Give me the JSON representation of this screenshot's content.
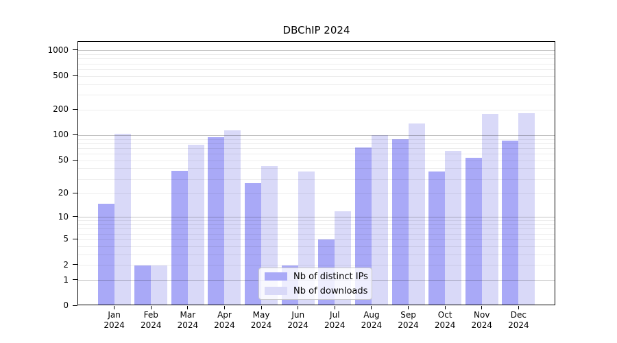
{
  "chart_data": {
    "type": "bar",
    "title": "DBChIP 2024",
    "x": {
      "months": [
        "Jan",
        "Feb",
        "Mar",
        "Apr",
        "May",
        "Jun",
        "Jul",
        "Aug",
        "Sep",
        "Oct",
        "Nov",
        "Dec"
      ],
      "year": "2024"
    },
    "series": [
      {
        "name": "Nb of distinct IPs",
        "color": "#a9a9f7",
        "values": [
          15,
          2,
          38,
          95,
          27,
          2,
          5,
          72,
          90,
          37,
          54,
          87
        ]
      },
      {
        "name": "Nb of downloads",
        "color": "#d9d9f8",
        "values": [
          105,
          2,
          77,
          115,
          43,
          37,
          12,
          100,
          138,
          66,
          180,
          182
        ]
      }
    ],
    "y_axis": {
      "scale": "log1p",
      "tick_values": [
        0,
        1,
        2,
        5,
        10,
        20,
        50,
        100,
        200,
        500,
        1000
      ],
      "tick_labels": [
        "0",
        "1",
        "2",
        "5",
        "10",
        "20",
        "50",
        "100",
        "200",
        "500",
        "1000"
      ],
      "gridlines_strong": [
        1,
        10,
        100,
        1000
      ],
      "gridlines_light": [
        2,
        3,
        4,
        5,
        6,
        7,
        8,
        9,
        20,
        30,
        40,
        50,
        60,
        70,
        80,
        90,
        200,
        300,
        400,
        500,
        600,
        700,
        800,
        900
      ],
      "top_value": 1270
    },
    "legend": {
      "position": "lower center",
      "entries": [
        "Nb of distinct IPs",
        "Nb of downloads"
      ]
    },
    "grid": true
  }
}
